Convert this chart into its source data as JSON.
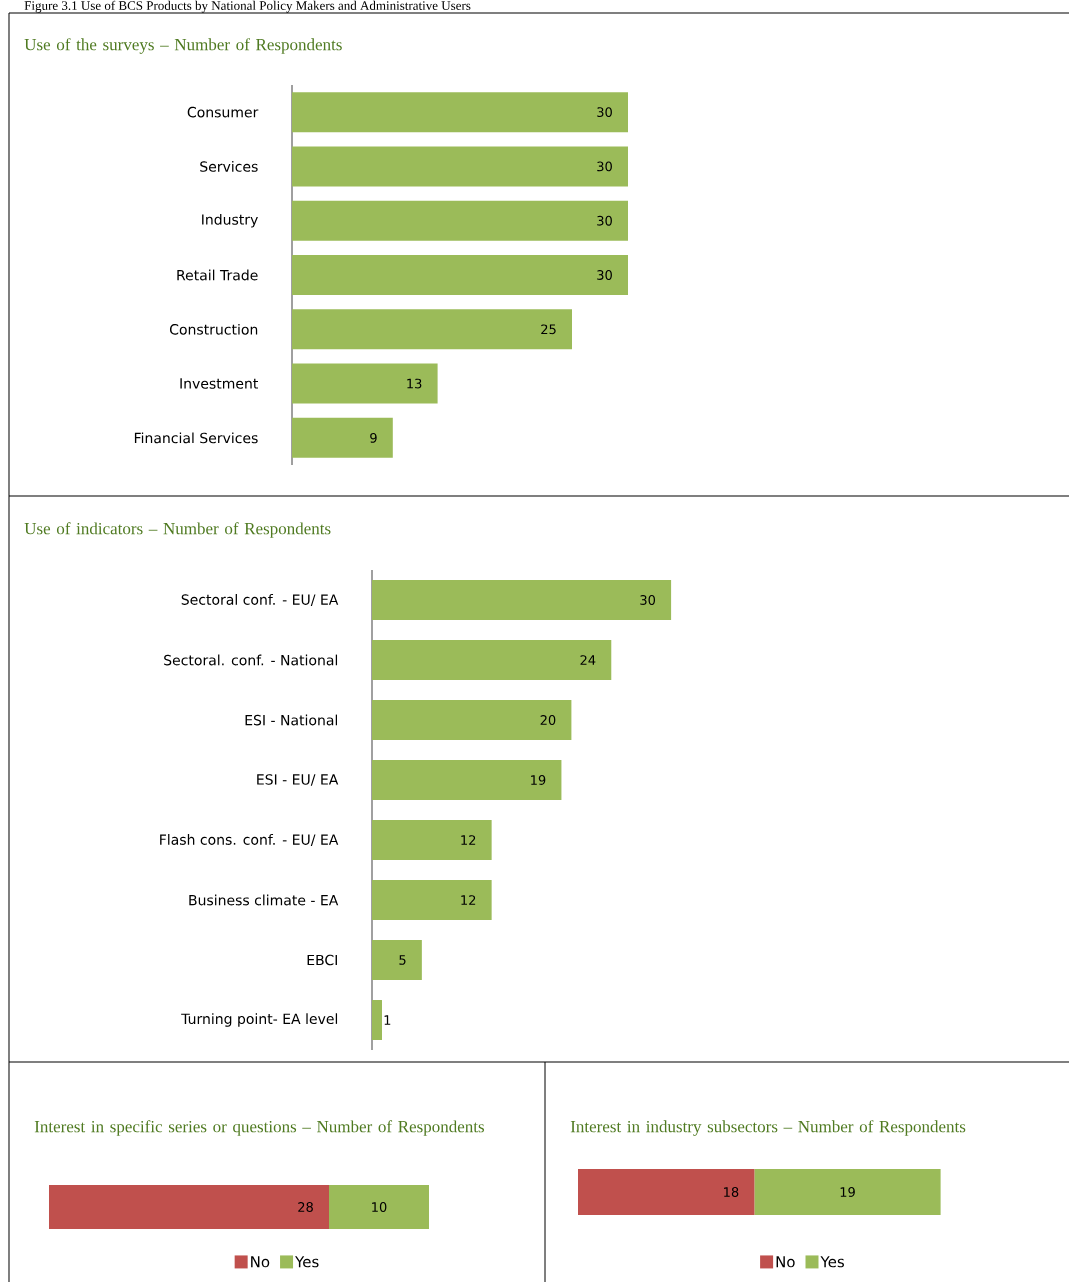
{
  "chart_data": [
    {
      "type": "bar",
      "orientation": "horizontal",
      "title": "Use of the surveys – Number of Respondents",
      "annotations": [
        "Figure 3.1 Use of BCS Products by National Policy Makers and Administrative Users"
      ],
      "categories": [
        "Consumer",
        "Services",
        "Industry",
        "Retail Trade",
        "Construction",
        "Investment",
        "Financial Services"
      ],
      "values": [
        30,
        30,
        30,
        30,
        25,
        13,
        9
      ],
      "color": "#9bbb59",
      "data_labels": true,
      "tick_labels": "y"
    },
    {
      "type": "bar",
      "orientation": "horizontal",
      "title": "Use of indicators – Number of Respondents",
      "categories": [
        "Sectoral conf. - EU/ EA",
        "Sectoral. conf.  - National",
        "ESI - National",
        "ESI - EU/ EA",
        "Flash cons. conf. - EU/  EA",
        "Business climate  - EA",
        "EBCI",
        "Turning point- EA level"
      ],
      "values": [
        30,
        24,
        20,
        19,
        12,
        12,
        5,
        1
      ],
      "color": "#9bbb59",
      "data_labels": true,
      "tick_labels": "y"
    },
    {
      "type": "bar",
      "orientation": "horizontal",
      "stacked": true,
      "title": "Interest in specific series or questions – Number of Respondents",
      "categories": [
        null
      ],
      "series": [
        {
          "name": "No",
          "color": "#c0504d",
          "values": [
            28
          ]
        },
        {
          "name": "Yes",
          "color": "#9bbb59",
          "values": [
            10
          ]
        }
      ],
      "data_labels": true,
      "legend": "bottom",
      "tick_labels": false
    },
    {
      "type": "bar",
      "orientation": "horizontal",
      "stacked": true,
      "title": "Interest in industry subsectors – Number of Respondents",
      "categories": [
        null
      ],
      "series": [
        {
          "name": "No",
          "color": "#c0504d",
          "values": [
            18
          ]
        },
        {
          "name": "Yes",
          "color": "#9bbb59",
          "values": [
            19
          ]
        }
      ],
      "data_labels": true,
      "legend": "bottom",
      "tick_labels": false
    }
  ]
}
